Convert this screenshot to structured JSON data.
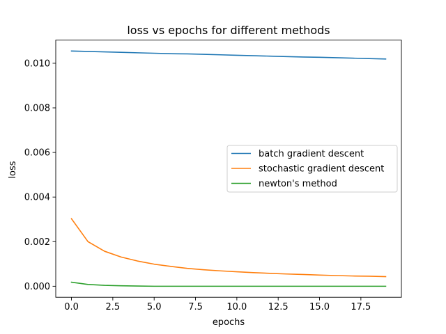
{
  "chart_data": {
    "type": "line",
    "title": "loss vs epochs for different methods",
    "xlabel": "epochs",
    "ylabel": "loss",
    "xlim": [
      -0.95,
      19.95
    ],
    "ylim": [
      -0.000494,
      0.01104
    ],
    "xticks": [
      0,
      2.5,
      5,
      7.5,
      10,
      12.5,
      15,
      17.5
    ],
    "xtick_labels": [
      "0.0",
      "2.5",
      "5.0",
      "7.5",
      "10.0",
      "12.5",
      "15.0",
      "17.5"
    ],
    "yticks": [
      0,
      0.002,
      0.004,
      0.006,
      0.008,
      0.01
    ],
    "ytick_labels": [
      "0.000",
      "0.002",
      "0.004",
      "0.006",
      "0.008",
      "0.010"
    ],
    "grid": false,
    "legend_position": "center-right",
    "x": [
      0,
      1,
      2,
      3,
      4,
      5,
      6,
      7,
      8,
      9,
      10,
      11,
      12,
      13,
      14,
      15,
      16,
      17,
      18,
      19
    ],
    "series": [
      {
        "name": "batch gradient descent",
        "color": "#1f77b4",
        "values": [
          0.01055,
          0.01053,
          0.01051,
          0.01049,
          0.01047,
          0.01045,
          0.01043,
          0.01042,
          0.0104,
          0.01038,
          0.01036,
          0.01034,
          0.01032,
          0.0103,
          0.01028,
          0.01027,
          0.01025,
          0.01023,
          0.01021,
          0.01019
        ]
      },
      {
        "name": "stochastic gradient descent",
        "color": "#ff7f0e",
        "values": [
          0.00303,
          0.002,
          0.00157,
          0.00131,
          0.00113,
          0.00099,
          0.00089,
          0.0008,
          0.00074,
          0.00069,
          0.00065,
          0.00061,
          0.00058,
          0.00055,
          0.00053,
          0.0005,
          0.00048,
          0.00046,
          0.00045,
          0.00043
        ]
      },
      {
        "name": "newton's method",
        "color": "#2ca02c",
        "values": [
          0.00018,
          8e-05,
          4e-05,
          2e-05,
          1e-05,
          0.0,
          0.0,
          0.0,
          0.0,
          0.0,
          0.0,
          0.0,
          0.0,
          0.0,
          0.0,
          0.0,
          0.0,
          0.0,
          0.0,
          0.0
        ]
      }
    ]
  }
}
